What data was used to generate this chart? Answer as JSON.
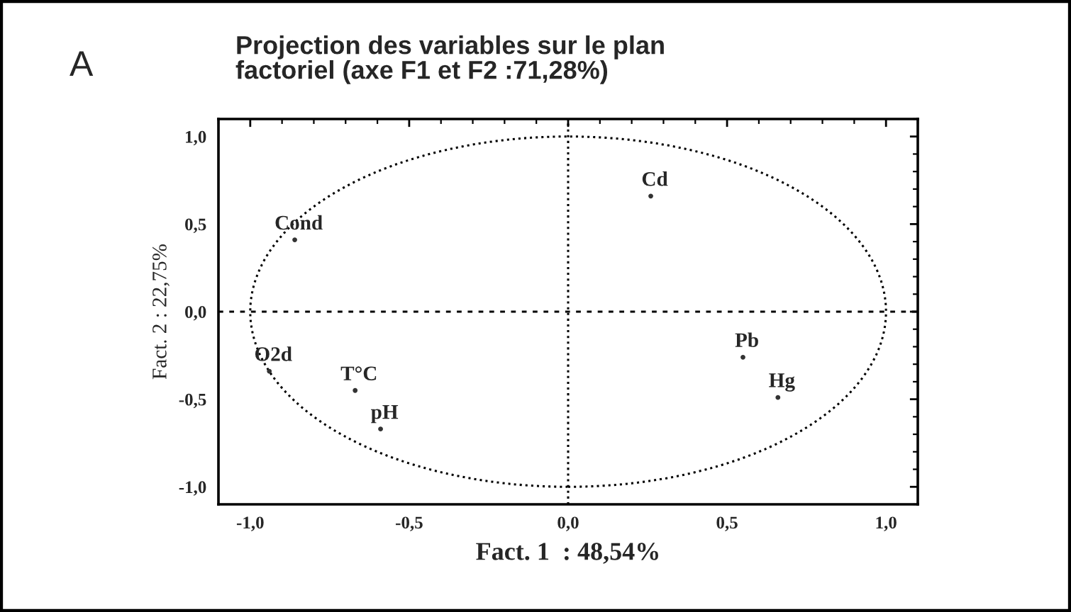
{
  "chart_data": {
    "type": "scatter",
    "title": "Projection des variables sur le plan\nfactoriel (axe F1 et F2 :71,28%)",
    "xlabel": "Fact. 1  : 48,54%",
    "ylabel": "Fact. 2 : 22,75%",
    "series": [
      {
        "color": "#333333",
        "marker": "circle",
        "x": [
          0.26,
          0.55,
          0.66,
          -0.86,
          -0.94,
          -0.67,
          -0.59
        ],
        "values": [
          0.66,
          -0.26,
          -0.49,
          0.41,
          -0.34,
          -0.45,
          -0.67
        ]
      }
    ],
    "annotations": [
      "A",
      {
        "text": "Cd",
        "x": 0.26,
        "y": 0.66
      },
      {
        "text": "Pb",
        "x": 0.55,
        "y": -0.26
      },
      {
        "text": "Hg",
        "x": 0.66,
        "y": -0.49
      },
      {
        "text": "Cond",
        "x": -0.86,
        "y": 0.41
      },
      {
        "text": "O2d",
        "x": -0.94,
        "y": -0.34
      },
      {
        "text": "T°C",
        "x": -0.67,
        "y": -0.45
      },
      {
        "text": "pH",
        "x": -0.59,
        "y": -0.67
      }
    ],
    "ref_lines": [
      {
        "axis": "x",
        "value": 0,
        "color": "#000000",
        "line_style": "dotted"
      },
      {
        "axis": "y",
        "value": 0,
        "color": "#000000",
        "line_style": "dashed"
      }
    ],
    "xlim": [
      -1.1,
      1.1
    ],
    "ylim": [
      -1.1,
      1.1
    ],
    "xticks": [
      {
        "value": -1,
        "label": "-1,0"
      },
      {
        "value": -0.5,
        "label": "-0,5"
      },
      {
        "value": 0,
        "label": "0,0"
      },
      {
        "value": 0.5,
        "label": "0,5"
      },
      {
        "value": 1,
        "label": "1,0"
      }
    ],
    "yticks": [
      {
        "value": -1,
        "label": "-1,0"
      },
      {
        "value": -0.5,
        "label": "-0,5"
      },
      {
        "value": 0,
        "label": "0,0"
      },
      {
        "value": 0.5,
        "label": "0,5"
      },
      {
        "value": 1,
        "label": "1,0"
      }
    ]
  }
}
